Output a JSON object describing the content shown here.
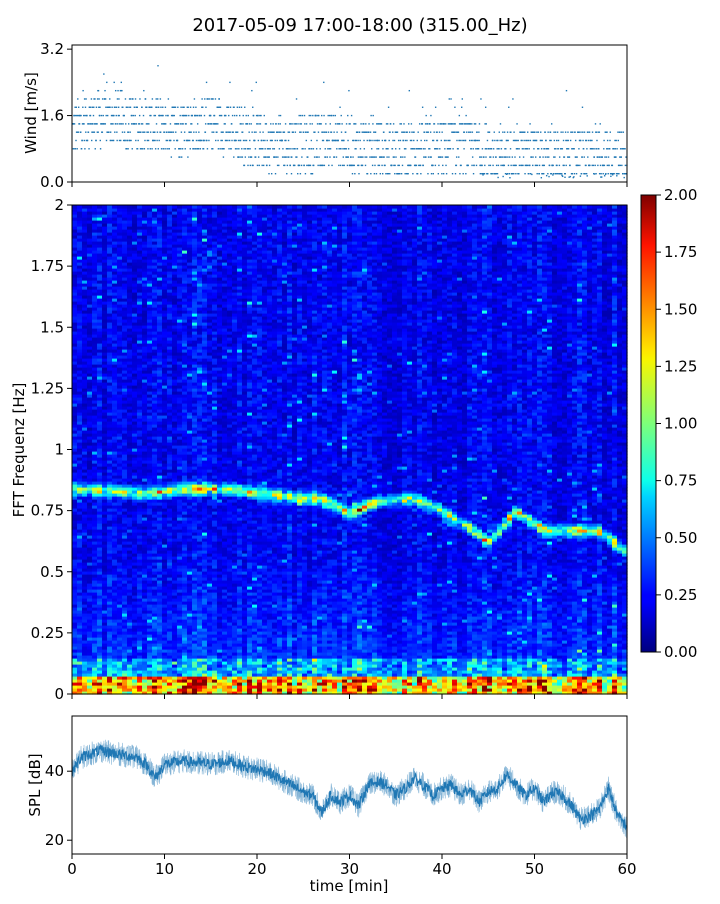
{
  "figure": {
    "title": "2017-05-09 17:00-18:00 (315.00_Hz)"
  },
  "chart_data": [
    {
      "type": "scatter",
      "name": "wind",
      "ylabel": "Wind [m/s]",
      "xlim": [
        0,
        60
      ],
      "ylim": [
        0.0,
        3.3
      ],
      "yticks": [
        0.0,
        1.6,
        3.2
      ],
      "ytick_labels": [
        "0.0",
        "1.6",
        "3.2"
      ],
      "color": "#1f77b4",
      "trend": [
        [
          0,
          1.2
        ],
        [
          2,
          1.5
        ],
        [
          5,
          1.5
        ],
        [
          8,
          1.4
        ],
        [
          10,
          1.3
        ],
        [
          12,
          1.3
        ],
        [
          15,
          1.4
        ],
        [
          18,
          1.2
        ],
        [
          20,
          1.0
        ],
        [
          22,
          0.9
        ],
        [
          25,
          0.9
        ],
        [
          28,
          1.0
        ],
        [
          30,
          0.9
        ],
        [
          33,
          0.8
        ],
        [
          36,
          0.8
        ],
        [
          39,
          0.8
        ],
        [
          42,
          0.9
        ],
        [
          45,
          0.7
        ],
        [
          48,
          0.7
        ],
        [
          51,
          0.6
        ],
        [
          54,
          0.6
        ],
        [
          57,
          0.7
        ],
        [
          60,
          0.6
        ]
      ]
    },
    {
      "type": "heatmap",
      "name": "spectrogram",
      "ylabel": "FFT Frequenz [Hz]",
      "xlim": [
        0,
        60
      ],
      "ylim": [
        0,
        2
      ],
      "yticks": [
        0,
        0.25,
        0.5,
        0.75,
        1,
        1.25,
        1.5,
        1.75,
        2
      ],
      "ytick_labels": [
        "0",
        "0.25",
        "0.5",
        "0.75",
        "1",
        "1.25",
        "1.5",
        "1.75",
        "2"
      ],
      "colorbar": {
        "colormap": "jet",
        "range": [
          0.0,
          2.0
        ],
        "ticks": [
          0.0,
          0.25,
          0.5,
          0.75,
          1.0,
          1.25,
          1.5,
          1.75,
          2.0
        ],
        "tick_labels": [
          "0.00",
          "0.25",
          "0.50",
          "0.75",
          "1.00",
          "1.25",
          "1.50",
          "1.75",
          "2.00"
        ]
      },
      "ridge_hz": [
        [
          0,
          0.84
        ],
        [
          5,
          0.83
        ],
        [
          8,
          0.82
        ],
        [
          12,
          0.84
        ],
        [
          17,
          0.84
        ],
        [
          21,
          0.82
        ],
        [
          25,
          0.8
        ],
        [
          27,
          0.8
        ],
        [
          30,
          0.74
        ],
        [
          33,
          0.79
        ],
        [
          37,
          0.8
        ],
        [
          40,
          0.75
        ],
        [
          43,
          0.68
        ],
        [
          45,
          0.62
        ],
        [
          48,
          0.75
        ],
        [
          51,
          0.67
        ],
        [
          54,
          0.67
        ],
        [
          57,
          0.67
        ],
        [
          60,
          0.58
        ]
      ]
    },
    {
      "type": "line",
      "name": "spl",
      "ylabel": "SPL [dB]",
      "xlabel": "time [min]",
      "xlim": [
        0,
        60
      ],
      "ylim": [
        16,
        56
      ],
      "yticks": [
        20,
        40
      ],
      "ytick_labels": [
        "20",
        "40"
      ],
      "xticks": [
        0,
        10,
        20,
        30,
        40,
        50,
        60
      ],
      "xtick_labels": [
        "0",
        "10",
        "20",
        "30",
        "40",
        "50",
        "60"
      ],
      "color": "#1f77b4",
      "trend": [
        [
          0,
          40
        ],
        [
          1,
          44
        ],
        [
          3,
          46
        ],
        [
          5,
          45
        ],
        [
          7,
          44
        ],
        [
          8,
          42
        ],
        [
          9,
          38
        ],
        [
          10,
          42
        ],
        [
          12,
          43
        ],
        [
          15,
          42
        ],
        [
          17,
          43
        ],
        [
          19,
          41
        ],
        [
          21,
          40
        ],
        [
          23,
          37
        ],
        [
          25,
          34
        ],
        [
          26,
          33
        ],
        [
          27,
          28
        ],
        [
          28,
          33
        ],
        [
          29,
          31
        ],
        [
          30,
          33
        ],
        [
          31,
          30
        ],
        [
          32,
          36
        ],
        [
          33,
          37
        ],
        [
          34,
          36
        ],
        [
          35,
          33
        ],
        [
          36,
          35
        ],
        [
          37,
          38
        ],
        [
          38,
          36
        ],
        [
          39,
          33
        ],
        [
          40,
          35
        ],
        [
          41,
          36
        ],
        [
          42,
          33
        ],
        [
          43,
          35
        ],
        [
          44,
          31
        ],
        [
          45,
          34
        ],
        [
          46,
          35
        ],
        [
          47,
          39
        ],
        [
          48,
          36
        ],
        [
          49,
          33
        ],
        [
          50,
          35
        ],
        [
          51,
          31
        ],
        [
          52,
          34
        ],
        [
          53,
          33
        ],
        [
          54,
          30
        ],
        [
          55,
          26
        ],
        [
          56,
          27
        ],
        [
          57,
          29
        ],
        [
          58,
          35
        ],
        [
          59,
          27
        ],
        [
          60,
          24
        ]
      ]
    }
  ]
}
